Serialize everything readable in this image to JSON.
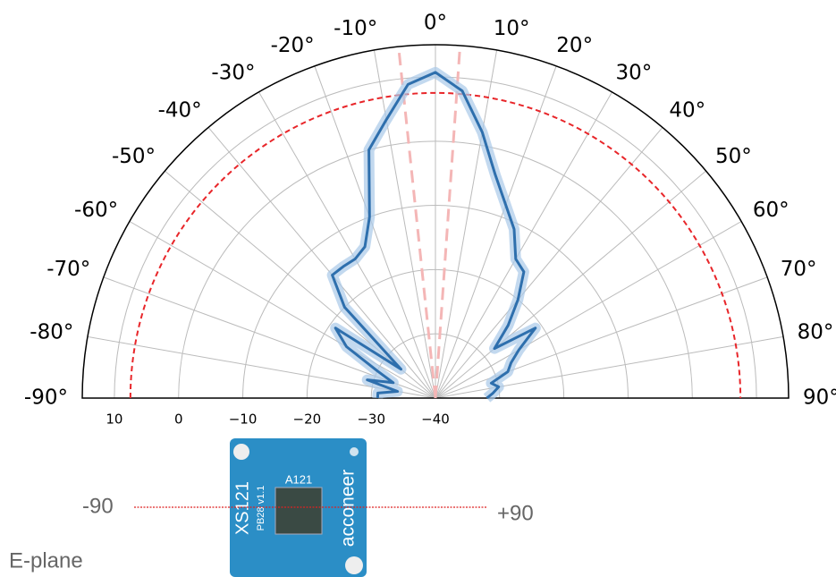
{
  "chart_data": {
    "type": "polar",
    "theta": [
      -90,
      -85,
      -80,
      -75,
      -70,
      -65,
      -60,
      -55,
      -50,
      -45,
      -40,
      -35,
      -30,
      -25,
      -20,
      -15,
      -10,
      -5,
      0,
      5,
      10,
      15,
      20,
      25,
      30,
      35,
      40,
      45,
      50,
      55,
      60,
      65,
      70,
      75,
      80,
      85,
      90
    ],
    "series": [
      {
        "color": "#2e6fad",
        "band_color": "#a9c9e8",
        "values": [
          -31,
          -31,
          -34,
          -29,
          -33,
          -30,
          -24,
          -21,
          -33,
          -20,
          -15,
          -15,
          -15,
          -14,
          -10,
          0,
          4,
          9,
          10.7,
          8,
          2,
          -4,
          -8,
          -11,
          -15,
          -16,
          -20,
          -24,
          -28,
          -21,
          -25,
          -27,
          -28,
          -31,
          -30,
          -31,
          -32
        ]
      }
    ],
    "thetalim": [
      -90,
      90
    ],
    "thetaticks": [
      {
        "value": -90,
        "label": "-90°"
      },
      {
        "value": -80,
        "label": "-80°"
      },
      {
        "value": -70,
        "label": "-70°"
      },
      {
        "value": -60,
        "label": "-60°"
      },
      {
        "value": -50,
        "label": "-50°"
      },
      {
        "value": -40,
        "label": "-40°"
      },
      {
        "value": -30,
        "label": "-30°"
      },
      {
        "value": -20,
        "label": "-20°"
      },
      {
        "value": -10,
        "label": "-10°"
      },
      {
        "value": 0,
        "label": "0°"
      },
      {
        "value": 10,
        "label": "10°"
      },
      {
        "value": 20,
        "label": "20°"
      },
      {
        "value": 30,
        "label": "30°"
      },
      {
        "value": 40,
        "label": "40°"
      },
      {
        "value": 50,
        "label": "50°"
      },
      {
        "value": 60,
        "label": "60°"
      },
      {
        "value": 70,
        "label": "70°"
      },
      {
        "value": 80,
        "label": "80°"
      },
      {
        "value": 90,
        "label": "90°"
      }
    ],
    "rlim": [
      -40,
      15
    ],
    "rticks": [
      10,
      0,
      {
        "value": -10,
        "label": "−10"
      },
      {
        "value": -20,
        "label": "−20"
      },
      {
        "value": -30,
        "label": "−30"
      },
      {
        "value": -40,
        "label": "−40"
      }
    ],
    "reference_circle": {
      "value": 7.5,
      "color": "#e8262a"
    },
    "reference_angles": {
      "values": [
        -6,
        4
      ],
      "color": "#f4b6b6"
    },
    "grid": true,
    "annotations": {
      "left": "-90",
      "right": "+90",
      "plane": "E-plane",
      "board": {
        "chip": "A121",
        "model": "XS121",
        "version": "PB28 v1.1",
        "brand": "acconeer"
      }
    }
  }
}
